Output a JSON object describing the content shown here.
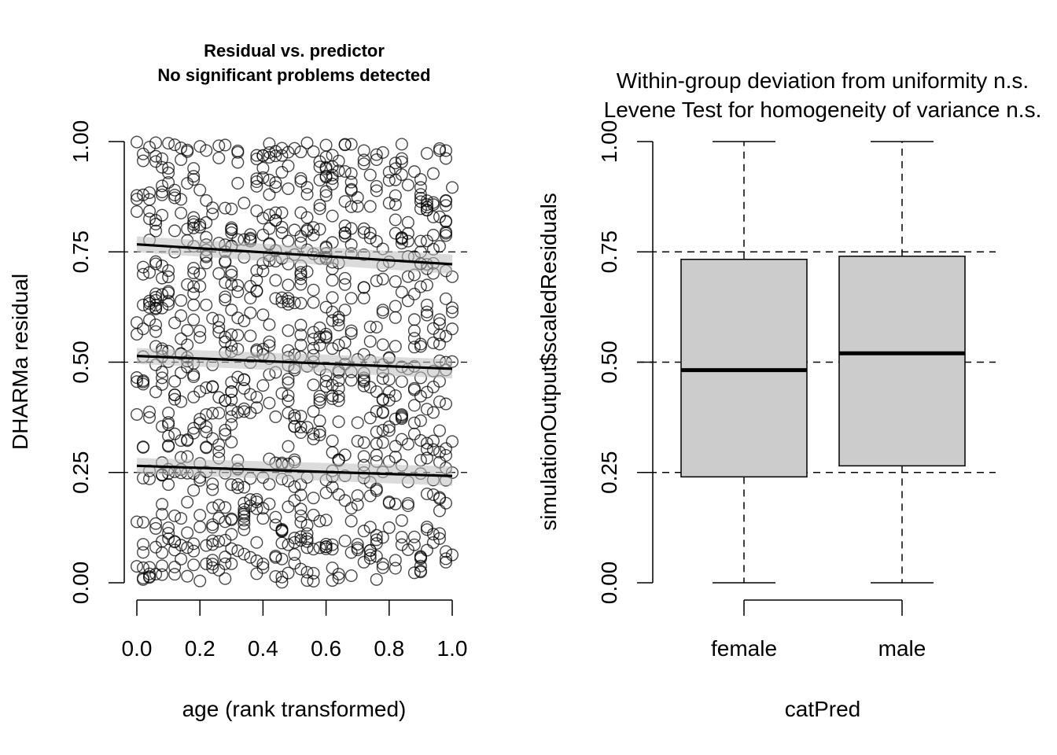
{
  "chart_data": [
    {
      "type": "scatter",
      "title": "Residual vs. predictor",
      "subtitle": "No significant problems detected",
      "xlabel": "age (rank transformed)",
      "ylabel": "DHARMa residual",
      "xlim": [
        0,
        1
      ],
      "ylim": [
        0,
        1
      ],
      "xticks": [
        "0.0",
        "0.2",
        "0.4",
        "0.6",
        "0.8",
        "1.0"
      ],
      "yticks": [
        "0.00",
        "0.25",
        "0.50",
        "0.75",
        "1.00"
      ],
      "reference_lines_y": [
        0.25,
        0.5,
        0.75
      ],
      "quantile_lines": [
        {
          "quantile": 0.25,
          "start": 0.265,
          "end": 0.242
        },
        {
          "quantile": 0.5,
          "start": 0.514,
          "end": 0.485
        },
        {
          "quantile": 0.75,
          "start": 0.767,
          "end": 0.722
        }
      ],
      "n_points": 1000,
      "point_style": "open-circle",
      "grid": false
    },
    {
      "type": "box",
      "title": "Within-group deviation from uniformity n.s.",
      "subtitle": "Levene Test for homogeneity of variance n.s.",
      "xlabel": "catPred",
      "ylabel": "simulationOutput$scaledResiduals",
      "ylim": [
        0,
        1
      ],
      "yticks": [
        "0.00",
        "0.25",
        "0.50",
        "0.75",
        "1.00"
      ],
      "reference_lines_y": [
        0.25,
        0.5,
        0.75
      ],
      "categories": [
        "female",
        "male"
      ],
      "boxes": [
        {
          "name": "female",
          "min": 0.0,
          "q1": 0.24,
          "median": 0.482,
          "q3": 0.733,
          "max": 1.0
        },
        {
          "name": "male",
          "min": 0.0,
          "q1": 0.265,
          "median": 0.52,
          "q3": 0.74,
          "max": 1.0
        }
      ],
      "box_fill": "#cccccc",
      "grid": false
    }
  ]
}
